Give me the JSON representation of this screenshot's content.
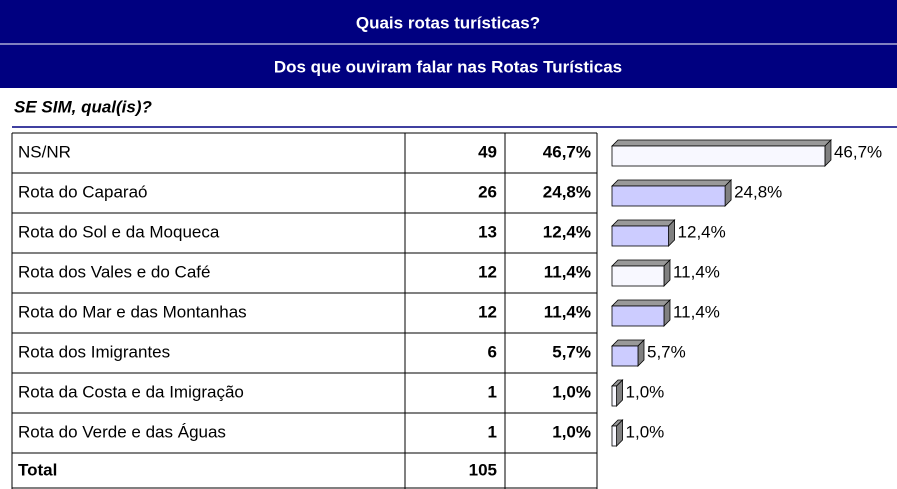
{
  "header": {
    "title": "Quais rotas turísticas?",
    "subtitle": "Dos que ouviram falar nas Rotas Turísticas"
  },
  "question": "SE SIM, qual(is)?",
  "chart_data": {
    "type": "bar",
    "orientation": "horizontal",
    "categories": [
      "NS/NR",
      "Rota do Caparaó",
      "Rota do Sol e da Moqueca",
      "Rota dos Vales e do Café",
      "Rota do Mar e das Montanhas",
      "Rota dos Imigrantes",
      "Rota da Costa e da Imigração",
      "Rota do Verde e das Águas"
    ],
    "counts": [
      49,
      26,
      13,
      12,
      12,
      6,
      1,
      1
    ],
    "values": [
      46.7,
      24.8,
      12.4,
      11.4,
      11.4,
      5.7,
      1.0,
      1.0
    ],
    "value_labels": [
      "46,7%",
      "24,8%",
      "12,4%",
      "11,4%",
      "11,4%",
      "5,7%",
      "1,0%",
      "1,0%"
    ],
    "colors": [
      "#f8f8ff",
      "#ccccff",
      "#ccccff",
      "#f8f8ff",
      "#ccccff",
      "#ccccff",
      "#f8f8ff",
      "#f8f8ff"
    ],
    "total_label": "Total",
    "total": 105
  }
}
